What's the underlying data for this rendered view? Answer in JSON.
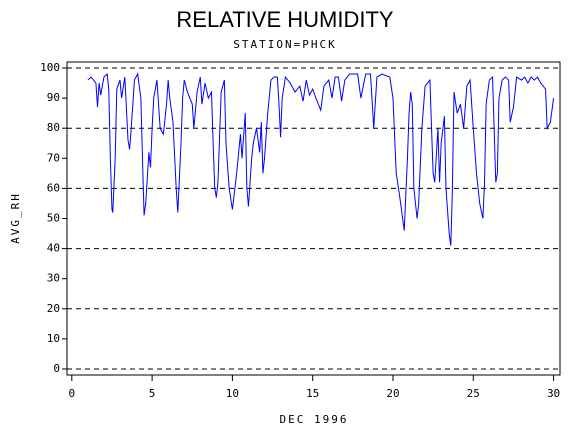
{
  "chart_data": {
    "type": "line",
    "title": "RELATIVE HUMIDITY",
    "subtitle": "STATION=PHCK",
    "x_label": "DEC 1996",
    "y_label": "AVG_RH",
    "xlim": [
      -0.3,
      30.4
    ],
    "ylim": [
      -2,
      102
    ],
    "xticks": [
      0,
      5,
      10,
      15,
      20,
      25,
      30
    ],
    "yticks": [
      0,
      10,
      20,
      30,
      40,
      50,
      60,
      70,
      80,
      90,
      100
    ],
    "grid": "dashed",
    "color": "#0000ff",
    "x": [
      1.0,
      1.2,
      1.5,
      1.6,
      1.7,
      1.8,
      2.0,
      2.2,
      2.3,
      2.4,
      2.5,
      2.55,
      2.7,
      2.8,
      3.0,
      3.1,
      3.3,
      3.5,
      3.6,
      3.7,
      3.9,
      4.1,
      4.3,
      4.4,
      4.5,
      4.6,
      4.8,
      4.9,
      5.0,
      5.1,
      5.3,
      5.5,
      5.7,
      5.9,
      6.0,
      6.1,
      6.3,
      6.5,
      6.6,
      6.8,
      6.9,
      7.0,
      7.2,
      7.5,
      7.6,
      7.8,
      8.0,
      8.1,
      8.3,
      8.5,
      8.7,
      8.8,
      8.9,
      9.0,
      9.1,
      9.3,
      9.5,
      9.6,
      9.8,
      10.0,
      10.2,
      10.3,
      10.5,
      10.6,
      10.8,
      10.9,
      11.0,
      11.2,
      11.3,
      11.5,
      11.7,
      11.8,
      11.9,
      12.0,
      12.2,
      12.4,
      12.6,
      12.8,
      12.9,
      13.0,
      13.1,
      13.3,
      13.6,
      13.9,
      14.2,
      14.4,
      14.6,
      14.8,
      15.0,
      15.2,
      15.5,
      15.7,
      16.0,
      16.2,
      16.4,
      16.6,
      16.8,
      17.0,
      17.3,
      17.8,
      18.0,
      18.3,
      18.6,
      18.8,
      19.0,
      19.3,
      19.8,
      20.0,
      20.2,
      20.4,
      20.6,
      20.7,
      20.9,
      21.0,
      21.1,
      21.2,
      21.3,
      21.5,
      21.6,
      21.8,
      22.0,
      22.3,
      22.4,
      22.5,
      22.6,
      22.8,
      22.9,
      23.0,
      23.2,
      23.3,
      23.5,
      23.6,
      23.7,
      23.8,
      24.0,
      24.2,
      24.4,
      24.6,
      24.8,
      25.0,
      25.2,
      25.4,
      25.6,
      25.7,
      25.8,
      26.0,
      26.2,
      26.4,
      26.5,
      26.6,
      26.8,
      27.0,
      27.2,
      27.3,
      27.5,
      27.7,
      28.0,
      28.2,
      28.4,
      28.6,
      28.8,
      29.0,
      29.2,
      29.5,
      29.6,
      29.8,
      30.0
    ],
    "values": [
      96,
      97,
      95,
      87,
      95,
      91,
      97,
      98,
      93,
      70,
      53,
      52,
      70,
      93,
      96,
      90,
      97,
      76,
      73,
      80,
      96,
      98,
      90,
      70,
      51,
      55,
      72,
      67,
      80,
      90,
      96,
      80,
      78,
      88,
      96,
      90,
      82,
      60,
      52,
      75,
      90,
      96,
      92,
      88,
      80,
      92,
      97,
      88,
      95,
      90,
      92,
      75,
      60,
      57,
      62,
      92,
      96,
      75,
      60,
      53,
      62,
      67,
      78,
      70,
      85,
      60,
      54,
      70,
      75,
      80,
      72,
      82,
      65,
      70,
      85,
      96,
      97,
      97,
      88,
      77,
      90,
      97,
      95,
      92,
      94,
      89,
      96,
      91,
      93,
      90,
      86,
      94,
      96,
      90,
      97,
      97,
      89,
      96,
      98,
      98,
      90,
      98,
      98,
      80,
      97,
      98,
      97,
      90,
      65,
      58,
      50,
      46,
      70,
      85,
      92,
      88,
      60,
      50,
      55,
      80,
      94,
      96,
      80,
      65,
      62,
      80,
      62,
      75,
      84,
      60,
      45,
      41,
      60,
      92,
      85,
      88,
      80,
      94,
      96,
      80,
      65,
      55,
      50,
      62,
      88,
      96,
      97,
      62,
      65,
      90,
      96,
      97,
      96,
      82,
      87,
      97,
      96,
      97,
      95,
      97,
      96,
      97,
      95,
      93,
      80,
      82,
      90
    ]
  }
}
